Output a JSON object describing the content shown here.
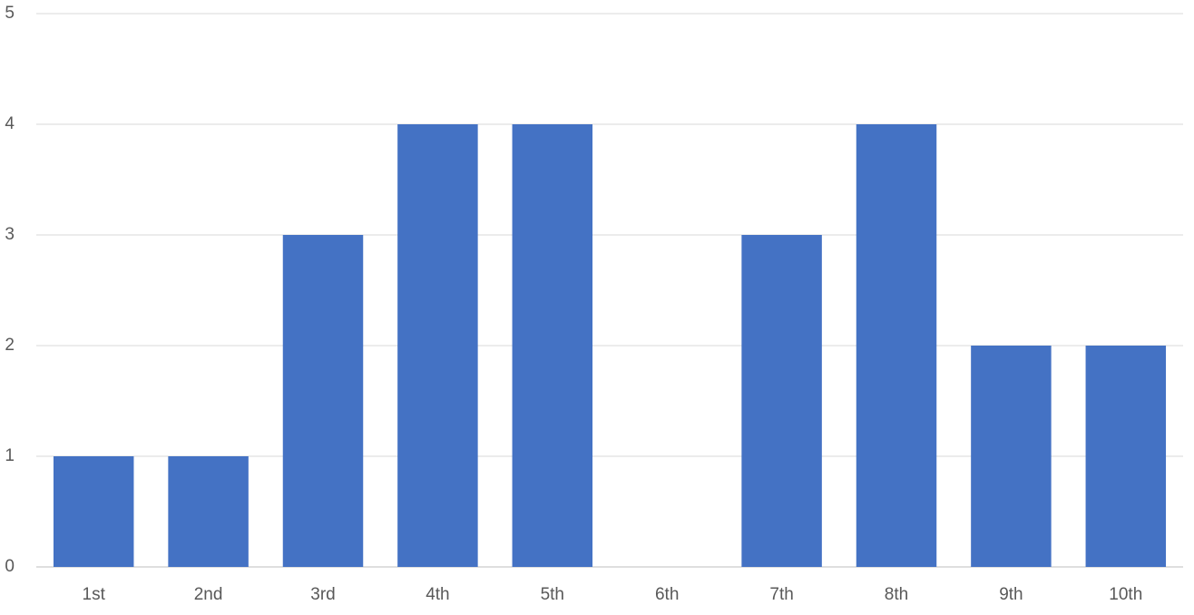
{
  "chart_data": {
    "type": "bar",
    "categories": [
      "1st",
      "2nd",
      "3rd",
      "4th",
      "5th",
      "6th",
      "7th",
      "8th",
      "9th",
      "10th"
    ],
    "values": [
      1,
      1,
      3,
      4,
      4,
      0,
      3,
      4,
      2,
      2
    ],
    "color": "#4472c4",
    "ylim": [
      0,
      5
    ],
    "yticks": [
      0,
      1,
      2,
      3,
      4,
      5
    ],
    "grid": true
  }
}
